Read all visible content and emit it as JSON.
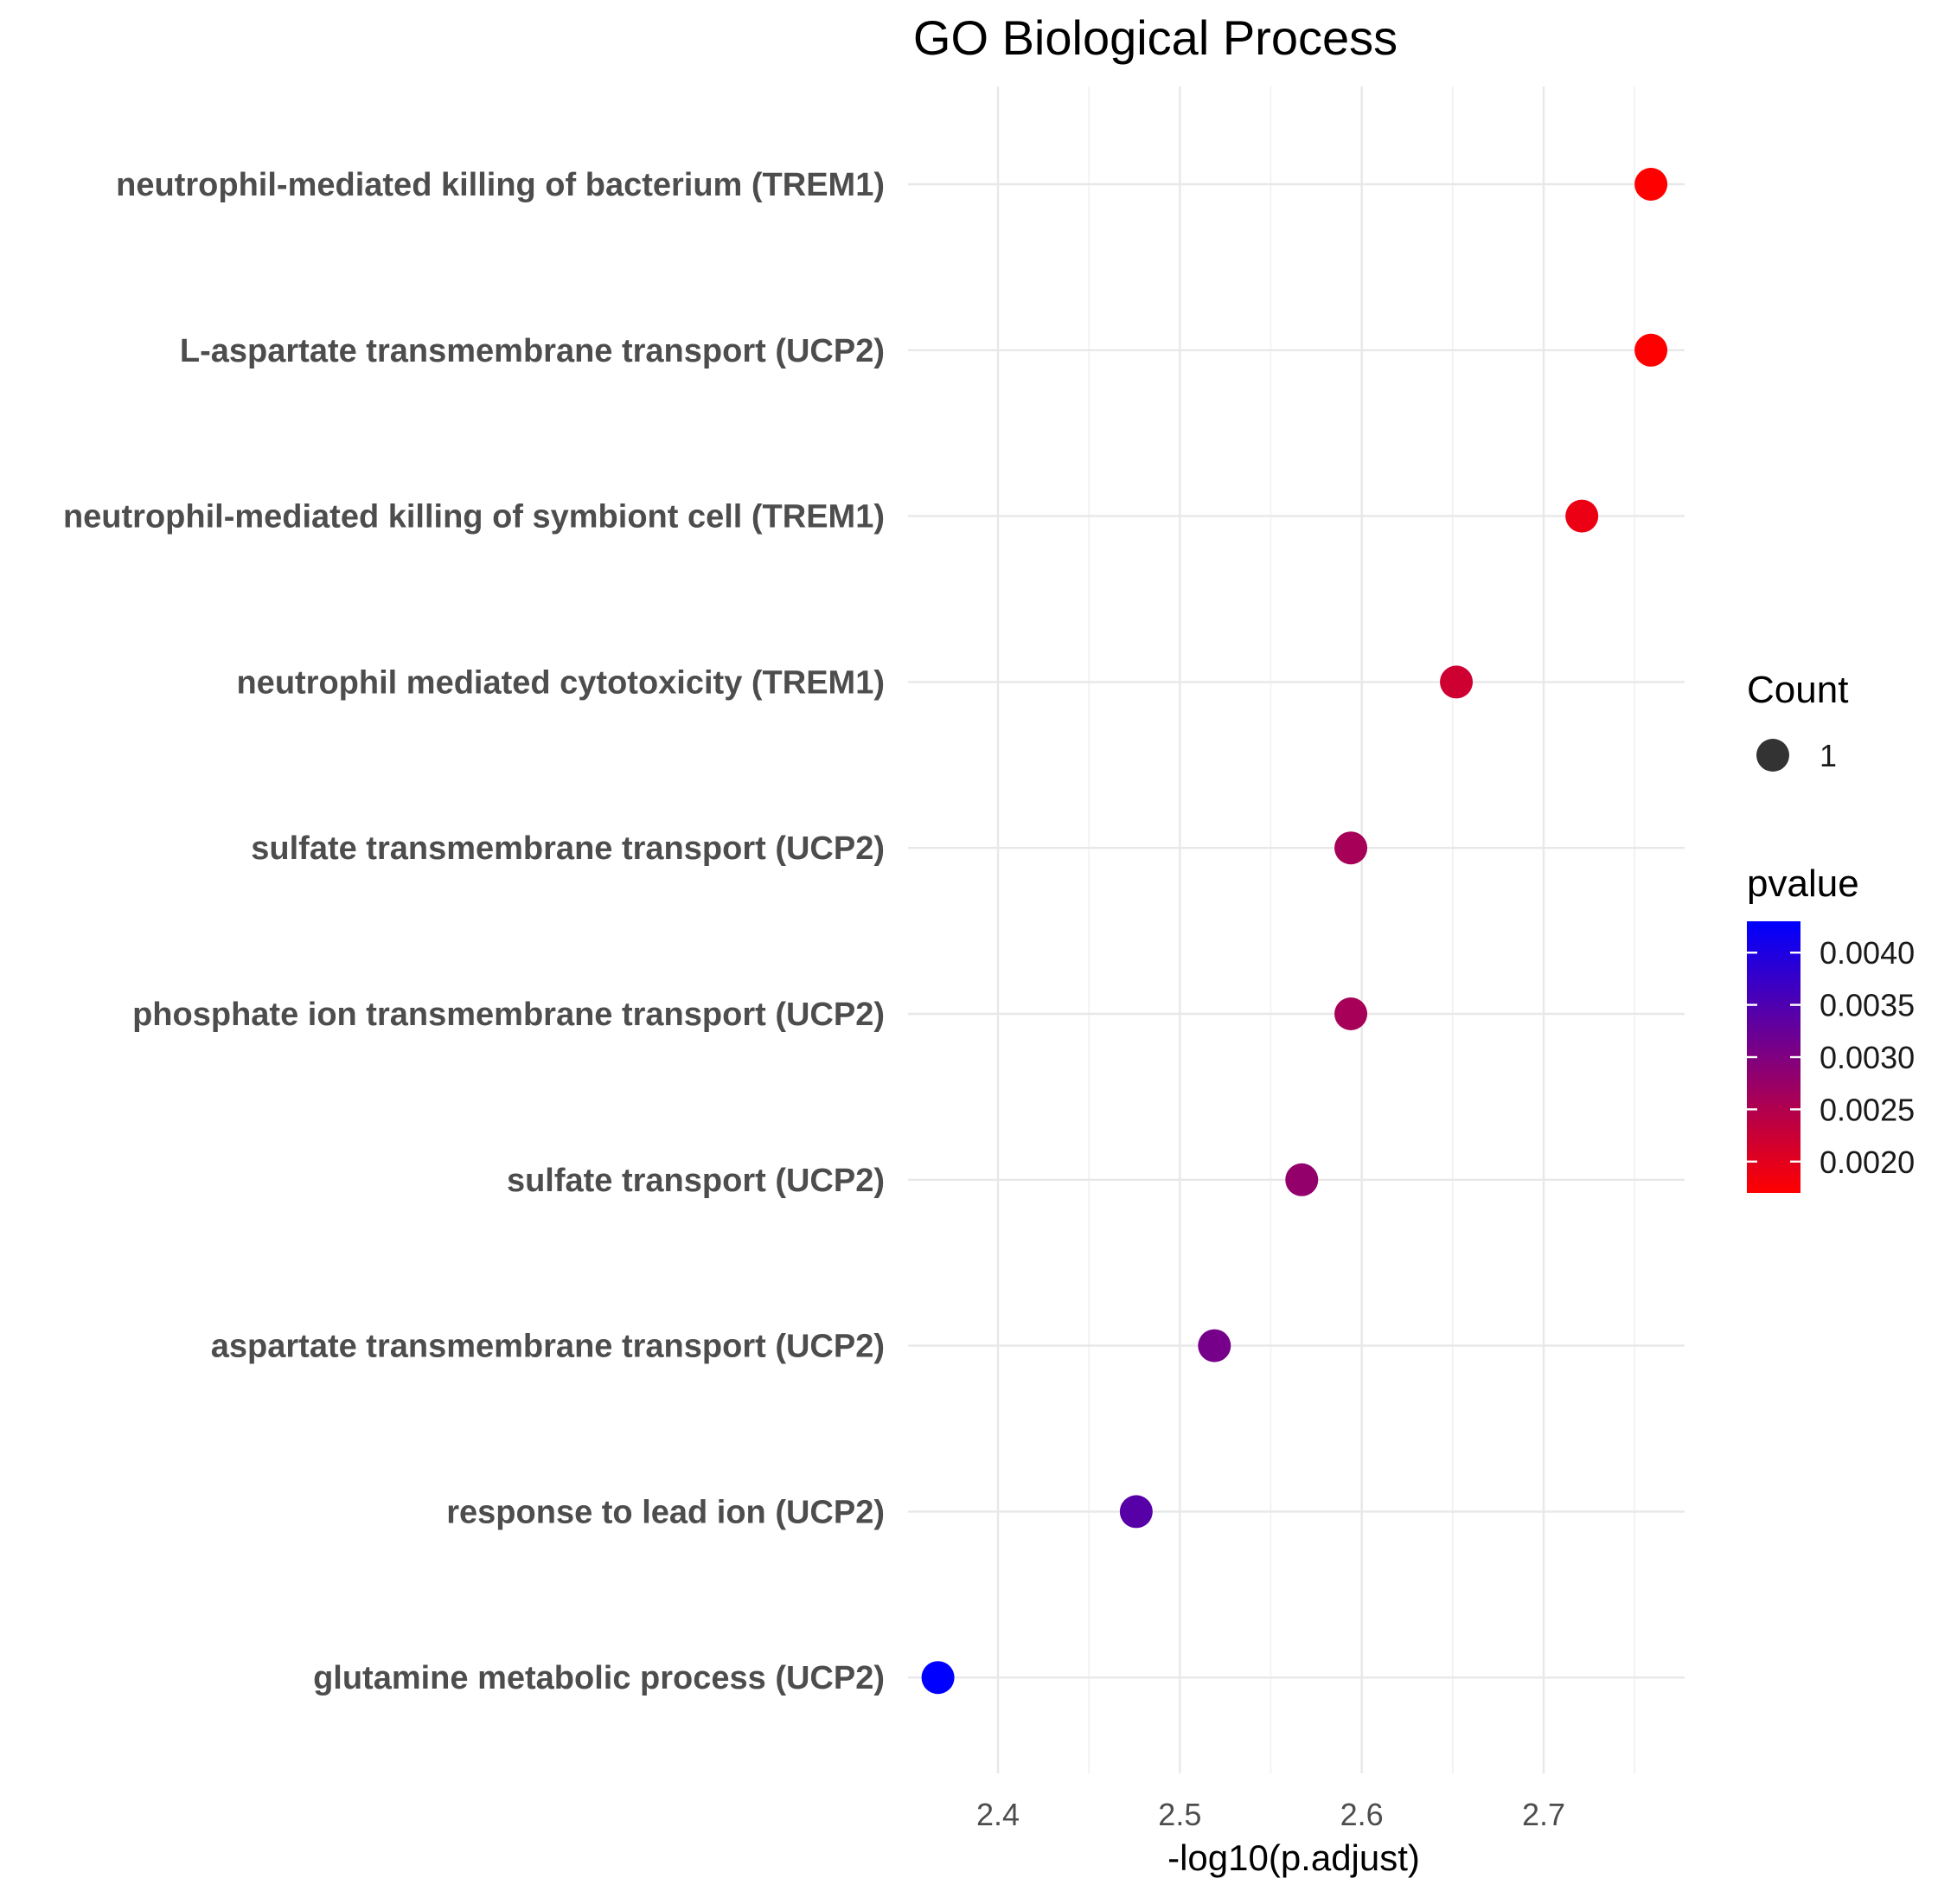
{
  "chart_data": {
    "type": "scatter",
    "title": "GO Biological Process",
    "xlabel": "-log10(p.adjust)",
    "ylabel": "",
    "xlim": [
      2.35,
      2.78
    ],
    "xticks": [
      2.4,
      2.5,
      2.6,
      2.7
    ],
    "xtick_labels": [
      "2.4",
      "2.5",
      "2.6",
      "2.7"
    ],
    "grid": true,
    "points": [
      {
        "term": "neutrophil-mediated killing of bacterium (TREM1)",
        "x": 2.759,
        "pvalue": 0.0017,
        "count": 1
      },
      {
        "term": "L-aspartate transmembrane transport (UCP2)",
        "x": 2.759,
        "pvalue": 0.0017,
        "count": 1
      },
      {
        "term": "neutrophil-mediated killing of symbiont cell (TREM1)",
        "x": 2.721,
        "pvalue": 0.0019,
        "count": 1
      },
      {
        "term": "neutrophil mediated cytotoxicity (TREM1)",
        "x": 2.652,
        "pvalue": 0.0022,
        "count": 1
      },
      {
        "term": "sulfate transmembrane transport (UCP2)",
        "x": 2.594,
        "pvalue": 0.0026,
        "count": 1
      },
      {
        "term": "phosphate ion transmembrane transport (UCP2)",
        "x": 2.594,
        "pvalue": 0.0026,
        "count": 1
      },
      {
        "term": "sulfate transport (UCP2)",
        "x": 2.567,
        "pvalue": 0.0028,
        "count": 1
      },
      {
        "term": "aspartate transmembrane transport (UCP2)",
        "x": 2.519,
        "pvalue": 0.0031,
        "count": 1
      },
      {
        "term": "response to lead ion (UCP2)",
        "x": 2.476,
        "pvalue": 0.0034,
        "count": 1
      },
      {
        "term": "glutamine metabolic process (UCP2)",
        "x": 2.367,
        "pvalue": 0.0043,
        "count": 1
      }
    ],
    "legend": {
      "size_title": "Count",
      "size_label": "1",
      "size_color": "#333333",
      "color_title": "pvalue",
      "color_range": [
        0.0017,
        0.0043
      ],
      "color_low": "#ff0000",
      "color_high": "#0000ff",
      "color_ticks": [
        0.002,
        0.0025,
        0.003,
        0.0035,
        0.004
      ],
      "color_tick_labels": [
        "0.0020",
        "0.0025",
        "0.0030",
        "0.0035",
        "0.0040"
      ],
      "placement": "right"
    }
  }
}
